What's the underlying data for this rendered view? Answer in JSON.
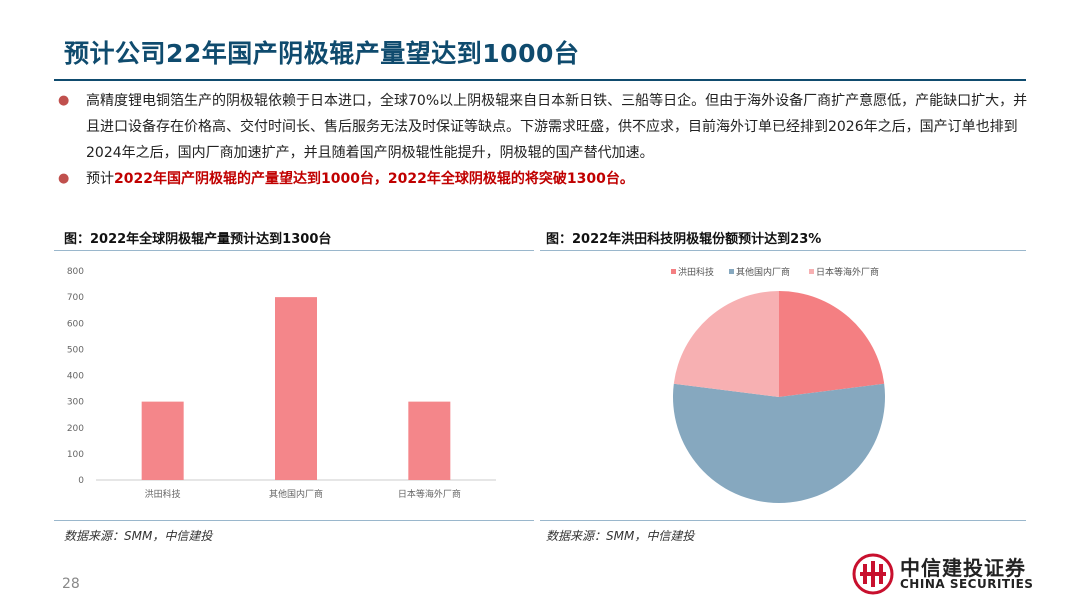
{
  "page": {
    "title": "预计公司22年国产阴极辊产量望达到1000台",
    "page_number": "28"
  },
  "bullets": [
    {
      "text": "高精度锂电铜箔生产的阴极辊依赖于日本进口，全球70%以上阴极辊来自日本新日铁、三船等日企。但由于海外设备厂商扩产意愿低，产能缺口扩大，并且进口设备存在价格高、交付时间长、售后服务无法及时保证等缺点。下游需求旺盛，供不应求，目前海外订单已经排到2026年之后，国产订单也排到2024年之后，国内厂商加速扩产，并且随着国产阴极辊性能提升，阴极辊的国产替代加速。"
    },
    {
      "prefix": "预计",
      "highlight": "2022年国产阴极辊的产量望达到1000台，2022年全球阴极辊的将突破1300台。"
    }
  ],
  "figures": {
    "left": {
      "title": "图：2022年全球阴极辊产量预计达到1300台",
      "source": "数据来源：SMM，中信建投"
    },
    "right": {
      "title": "图：2022年洪田科技阴极辊份额预计达到23%",
      "source": "数据来源：SMM，中信建投"
    }
  },
  "chart_data": [
    {
      "type": "bar",
      "categories": [
        "洪田科技",
        "其他国内厂商",
        "日本等海外厂商"
      ],
      "values": [
        300,
        700,
        300
      ],
      "ylim": [
        0,
        800
      ],
      "yticks": [
        "0",
        "100",
        "200",
        "300",
        "400",
        "500",
        "600",
        "700",
        "800"
      ],
      "grid": false,
      "color": "#f4868a"
    },
    {
      "type": "pie",
      "labels": [
        "洪田科技",
        "其他国内厂商",
        "日本等海外厂商"
      ],
      "values": [
        23,
        54,
        23
      ],
      "colors": [
        "#f47f82",
        "#86a8bf",
        "#f7b0b2"
      ],
      "legend_position": "top"
    }
  ],
  "logo": {
    "name_cn": "中信建投证券",
    "name_en": "CHINA SECURITIES"
  },
  "colors": {
    "title": "#0f4b6e",
    "bullet": "#c0504d",
    "highlight": "#c00000"
  }
}
